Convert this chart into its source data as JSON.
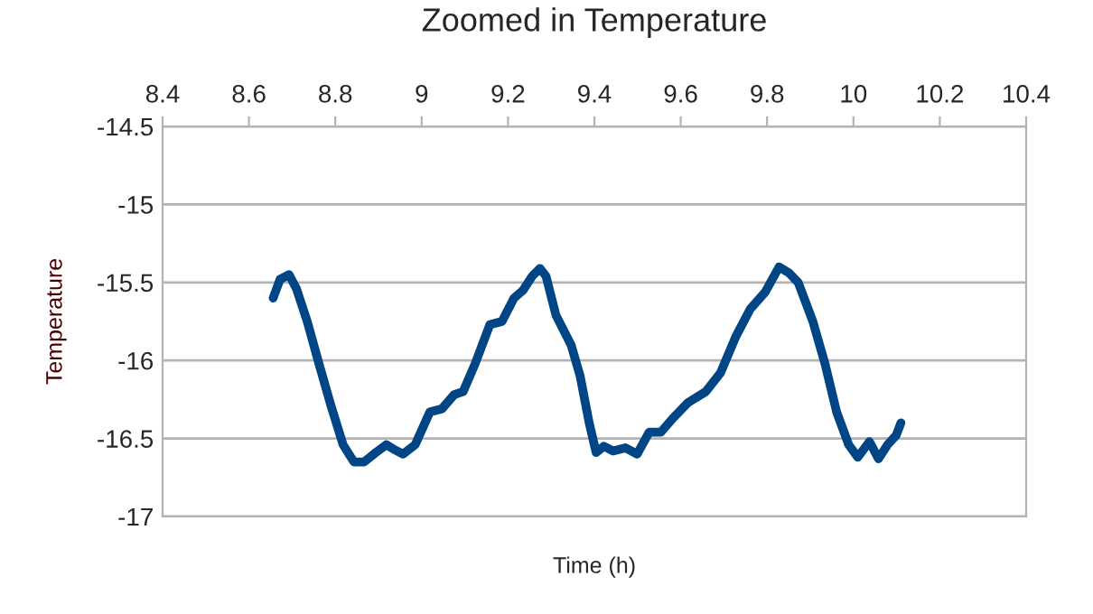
{
  "chart_data": {
    "type": "line",
    "title": "Zoomed in Temperature",
    "xlabel": "Time (h)",
    "ylabel": "Temperature",
    "xlim": [
      8.4,
      10.4
    ],
    "xticks": [
      8.4,
      8.6,
      8.8,
      9,
      9.2,
      9.4,
      9.6,
      9.8,
      10,
      10.2,
      10.4
    ],
    "ylim": [
      -17,
      -14.5
    ],
    "yticks": [
      -17,
      -16.5,
      -16,
      -15.5,
      -15,
      -14.5
    ],
    "grid": "y",
    "legend": false,
    "marker": "none",
    "line_style": "solid",
    "series": [
      {
        "color": "#004586",
        "x": [
          8.656,
          8.672,
          8.693,
          8.71,
          8.735,
          8.762,
          8.79,
          8.818,
          8.843,
          8.867,
          8.894,
          8.918,
          8.936,
          8.957,
          8.985,
          9.019,
          9.047,
          9.075,
          9.096,
          9.124,
          9.158,
          9.186,
          9.214,
          9.235,
          9.256,
          9.274,
          9.288,
          9.311,
          9.346,
          9.367,
          9.388,
          9.404,
          9.422,
          9.443,
          9.472,
          9.499,
          9.527,
          9.554,
          9.582,
          9.617,
          9.658,
          9.692,
          9.727,
          9.761,
          9.796,
          9.828,
          9.851,
          9.872,
          9.906,
          9.934,
          9.961,
          9.989,
          10.01,
          10.037,
          10.058,
          10.079,
          10.099,
          10.11
        ],
        "values": [
          -15.6,
          -15.48,
          -15.45,
          -15.54,
          -15.75,
          -16.02,
          -16.29,
          -16.54,
          -16.65,
          -16.65,
          -16.59,
          -16.54,
          -16.57,
          -16.6,
          -16.54,
          -16.33,
          -16.31,
          -16.22,
          -16.2,
          -16.02,
          -15.77,
          -15.75,
          -15.6,
          -15.55,
          -15.46,
          -15.41,
          -15.46,
          -15.71,
          -15.9,
          -16.1,
          -16.4,
          -16.59,
          -16.55,
          -16.58,
          -16.56,
          -16.6,
          -16.46,
          -16.46,
          -16.37,
          -16.27,
          -16.2,
          -16.08,
          -15.85,
          -15.67,
          -15.56,
          -15.4,
          -15.44,
          -15.5,
          -15.75,
          -16.02,
          -16.33,
          -16.54,
          -16.62,
          -16.52,
          -16.63,
          -16.54,
          -16.48,
          -16.4
        ]
      }
    ]
  }
}
